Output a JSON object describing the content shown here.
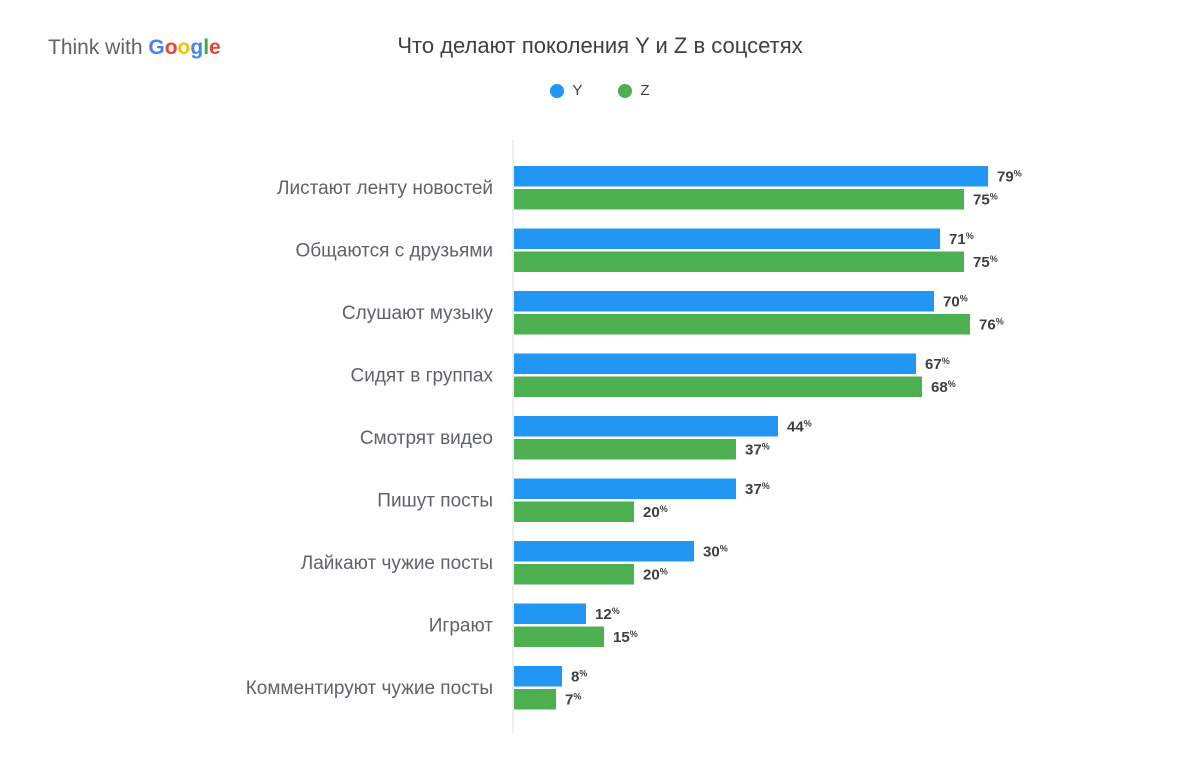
{
  "brand": {
    "prefix": "Think with ",
    "google_letters": [
      {
        "ch": "G",
        "color": "#4285F4"
      },
      {
        "ch": "o",
        "color": "#EA4335"
      },
      {
        "ch": "o",
        "color": "#FBBC05"
      },
      {
        "ch": "g",
        "color": "#4285F4"
      },
      {
        "ch": "l",
        "color": "#34A853"
      },
      {
        "ch": "e",
        "color": "#EA4335"
      }
    ]
  },
  "chart_data": {
    "type": "bar",
    "orientation": "horizontal",
    "title": "Что делают поколения Y и Z в соцсетях",
    "xlim": [
      0,
      100
    ],
    "grid": false,
    "legend_position": "top-center",
    "value_suffix": "%",
    "categories": [
      "Листают ленту новостей",
      "Общаются с друзьями",
      "Слушают музыку",
      "Сидят в группах",
      "Смотрят видео",
      "Пишут посты",
      "Лайкают чужие посты",
      "Играют",
      "Комментируют чужие посты"
    ],
    "series": [
      {
        "name": "Y",
        "color": "#2196F3",
        "values": [
          79,
          71,
          70,
          67,
          44,
          37,
          30,
          12,
          8
        ]
      },
      {
        "name": "Z",
        "color": "#4CAF50",
        "values": [
          75,
          75,
          76,
          68,
          37,
          20,
          20,
          15,
          7
        ]
      }
    ]
  }
}
